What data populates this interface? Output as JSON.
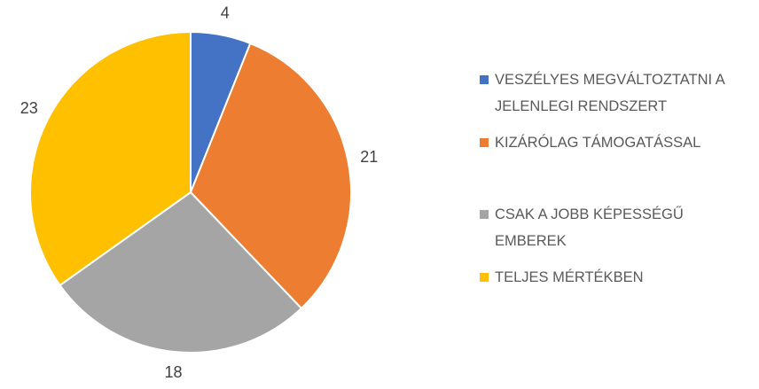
{
  "chart_data": {
    "type": "pie",
    "categories": [
      "VESZÉLYES MEGVÁLTOZTATNI A JELENLEGI RENDSZERT",
      "KIZÁRÓLAG TÁMOGATÁSSAL",
      "CSAK A JOBB KÉPESSÉGŰ EMBEREK",
      "TELJES MÉRTÉKBEN"
    ],
    "values": [
      4,
      21,
      18,
      23
    ],
    "colors": [
      "#4472c4",
      "#ed7d31",
      "#a5a5a5",
      "#ffc000"
    ],
    "legend": "right"
  }
}
